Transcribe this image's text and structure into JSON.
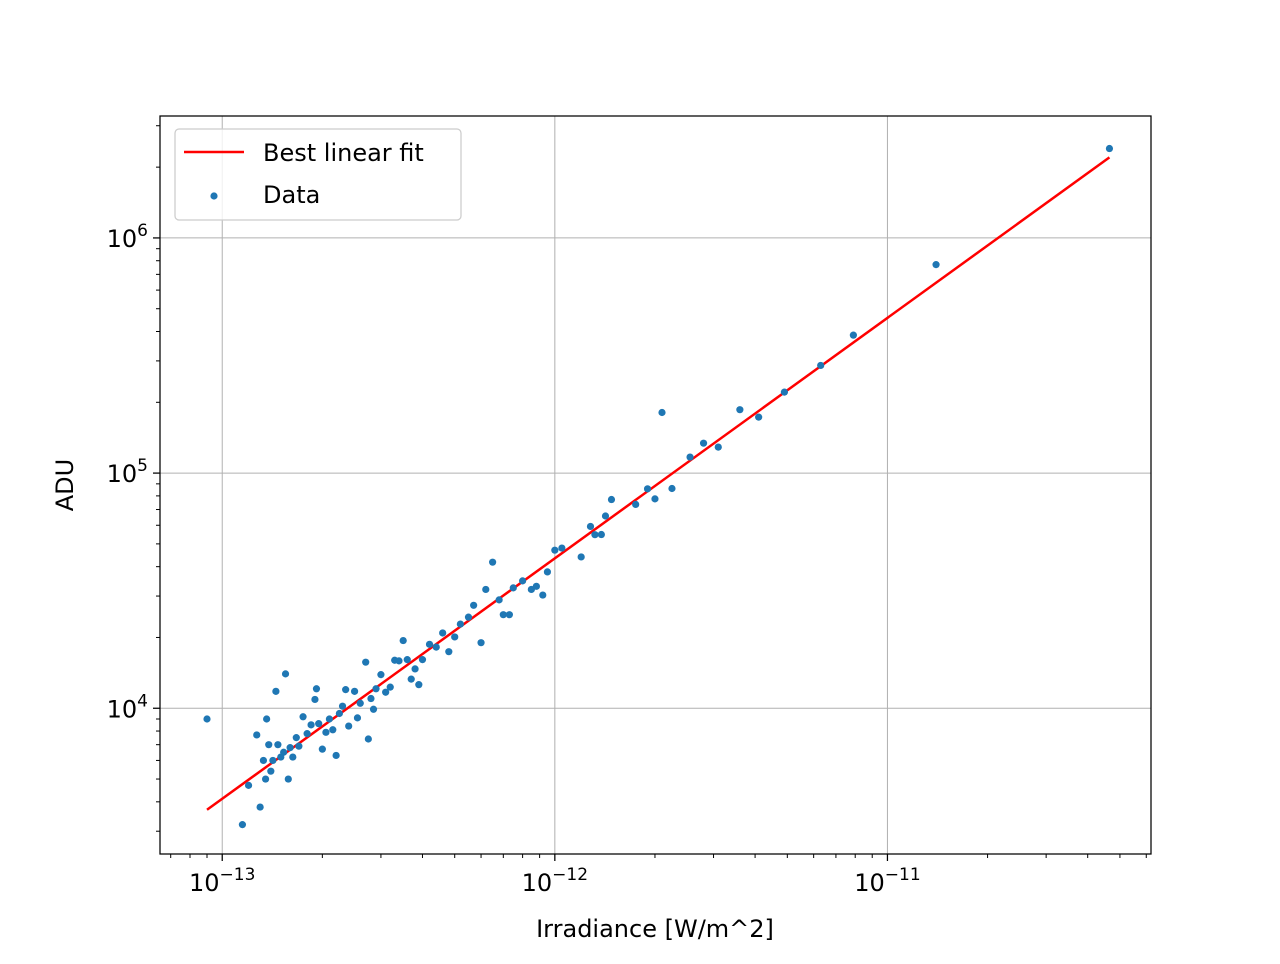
{
  "chart_data": {
    "type": "scatter",
    "xlabel": "Irradiance [W/m^2]",
    "ylabel": "ADU",
    "xscale": "log",
    "yscale": "log",
    "xlim": [
      6.5e-14,
      6.2e-11
    ],
    "ylim": [
      2400,
      3300000
    ],
    "grid": true,
    "legend_position": "upper left",
    "x_ticks": [
      {
        "value": 1e-13,
        "base": "10",
        "exp": "−13"
      },
      {
        "value": 1e-12,
        "base": "10",
        "exp": "−12"
      },
      {
        "value": 1e-11,
        "base": "10",
        "exp": "−11"
      }
    ],
    "y_ticks": [
      {
        "value": 10000,
        "base": "10",
        "exp": "4"
      },
      {
        "value": 100000,
        "base": "10",
        "exp": "5"
      },
      {
        "value": 1000000,
        "base": "10",
        "exp": "6"
      }
    ],
    "series": [
      {
        "name": "Best linear fit",
        "kind": "line",
        "color": "#ff0000",
        "x": [
          9e-14,
          4.65e-11
        ],
        "y": [
          3700,
          2200000
        ]
      },
      {
        "name": "Data",
        "kind": "scatter",
        "color": "#1f77b4",
        "x": [
          9e-14,
          1.15e-13,
          1.2e-13,
          1.27e-13,
          1.3e-13,
          1.33e-13,
          1.35e-13,
          1.36e-13,
          1.38e-13,
          1.4e-13,
          1.42e-13,
          1.45e-13,
          1.47e-13,
          1.5e-13,
          1.53e-13,
          1.55e-13,
          1.58e-13,
          1.6e-13,
          1.63e-13,
          1.67e-13,
          1.7e-13,
          1.75e-13,
          1.8e-13,
          1.85e-13,
          1.9e-13,
          1.92e-13,
          1.95e-13,
          2e-13,
          2.05e-13,
          2.1e-13,
          2.15e-13,
          2.2e-13,
          2.25e-13,
          2.3e-13,
          2.35e-13,
          2.4e-13,
          2.5e-13,
          2.55e-13,
          2.6e-13,
          2.7e-13,
          2.75e-13,
          2.8e-13,
          2.85e-13,
          2.9e-13,
          3e-13,
          3.1e-13,
          3.2e-13,
          3.3e-13,
          3.4e-13,
          3.5e-13,
          3.6e-13,
          3.7e-13,
          3.8e-13,
          3.9e-13,
          4e-13,
          4.2e-13,
          4.4e-13,
          4.6e-13,
          4.8e-13,
          5e-13,
          5.2e-13,
          5.5e-13,
          5.7e-13,
          6e-13,
          6.2e-13,
          6.5e-13,
          6.8e-13,
          7e-13,
          7.3e-13,
          7.5e-13,
          8e-13,
          8.5e-13,
          8.8e-13,
          9.2e-13,
          9.5e-13,
          1e-12,
          1.05e-12,
          1.2e-12,
          1.28e-12,
          1.32e-12,
          1.38e-12,
          1.42e-12,
          1.48e-12,
          1.75e-12,
          1.9e-12,
          2e-12,
          2.1e-12,
          2.25e-12,
          2.55e-12,
          2.8e-12,
          3.1e-12,
          3.6e-12,
          4.1e-12,
          4.9e-12,
          6.3e-12,
          7.9e-12,
          1.4e-11,
          4.65e-11
        ],
        "y": [
          9000,
          3200,
          4700,
          7700,
          3800,
          6000,
          5000,
          9000,
          7000,
          5400,
          6000,
          11800,
          7000,
          6200,
          6500,
          14000,
          5000,
          6800,
          6200,
          7500,
          6900,
          9200,
          7800,
          8500,
          10900,
          12100,
          8600,
          6700,
          7900,
          9000,
          8100,
          6300,
          9500,
          10200,
          12000,
          8400,
          11800,
          9100,
          10500,
          15700,
          7400,
          11000,
          9900,
          12100,
          13900,
          11700,
          12300,
          16000,
          15900,
          19400,
          16100,
          13300,
          14700,
          12600,
          16100,
          18700,
          18200,
          20900,
          17400,
          20100,
          22800,
          24400,
          27400,
          19000,
          32000,
          41800,
          28900,
          25000,
          25000,
          32500,
          34800,
          32000,
          33000,
          30300,
          38000,
          47000,
          48000,
          44000,
          59300,
          54700,
          54800,
          65700,
          77200,
          73600,
          85700,
          77700,
          181000,
          86000,
          117000,
          134000,
          129000,
          186000,
          173000,
          221000,
          287000,
          386000,
          770000,
          2400000
        ]
      }
    ]
  }
}
